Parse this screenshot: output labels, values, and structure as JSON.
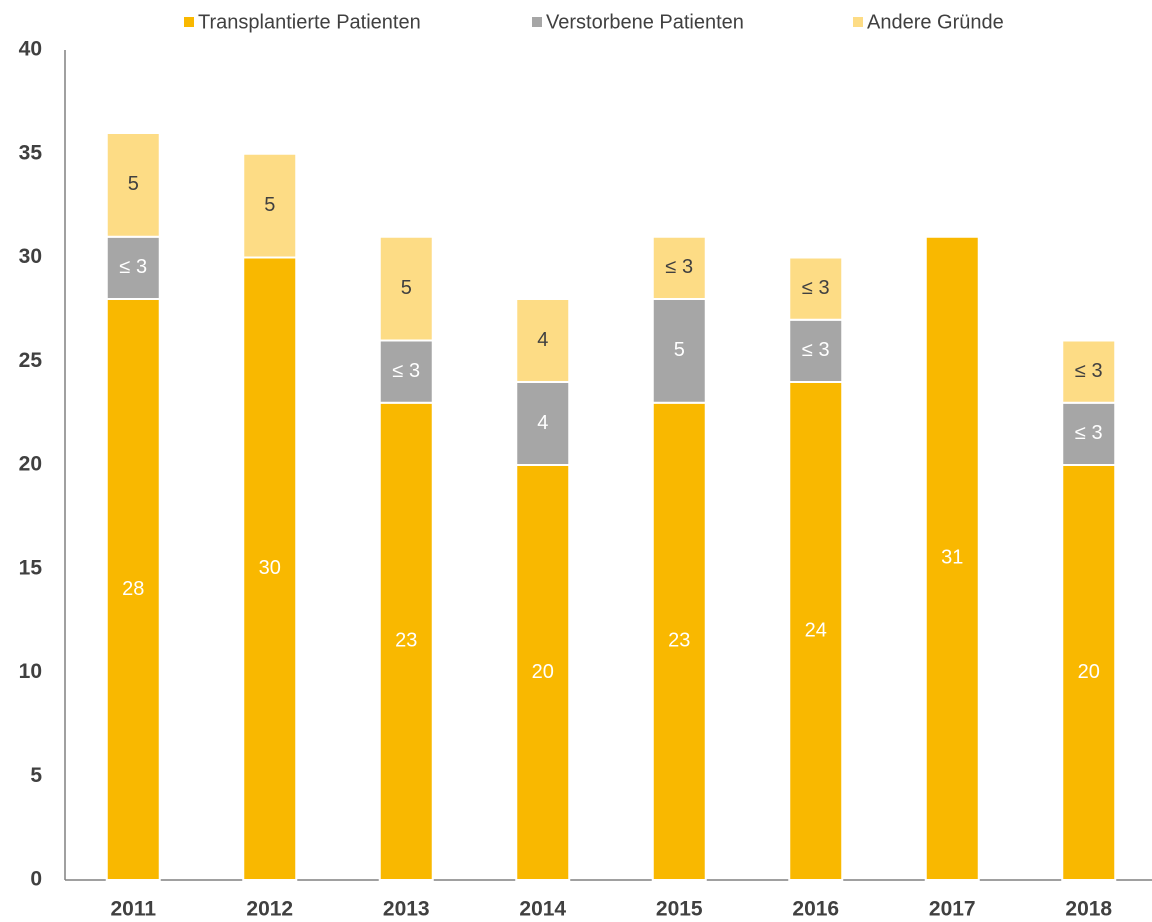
{
  "chart_data": {
    "type": "stacked_bar",
    "categories": [
      "2011",
      "2012",
      "2013",
      "2014",
      "2015",
      "2016",
      "2017",
      "2018"
    ],
    "series": [
      {
        "name": "Transplantierte Patienten",
        "color": "#f9b800",
        "label_color": "#ffffff",
        "values": [
          28,
          30,
          23,
          20,
          23,
          24,
          31,
          20
        ]
      },
      {
        "name": "Verstorbene Patienten",
        "color": "#a6a6a6",
        "label_color": "#ffffff",
        "values": [
          3,
          null,
          3,
          4,
          5,
          3,
          null,
          3
        ],
        "value_labels": [
          "≤ 3",
          null,
          "≤ 3",
          "4",
          "5",
          "≤ 3",
          null,
          "≤ 3"
        ]
      },
      {
        "name": "Andere Gründe",
        "color": "#fddc85",
        "label_color": "#404040",
        "values": [
          5,
          5,
          5,
          4,
          3,
          3,
          null,
          3
        ],
        "value_labels": [
          "5",
          "5",
          "5",
          "4",
          "≤ 3",
          "≤ 3",
          null,
          "≤ 3"
        ]
      }
    ],
    "ylim": [
      0,
      40
    ],
    "yticks": [
      0,
      5,
      10,
      15,
      20,
      25,
      30,
      35,
      40
    ],
    "grid": false,
    "legend": "top"
  }
}
